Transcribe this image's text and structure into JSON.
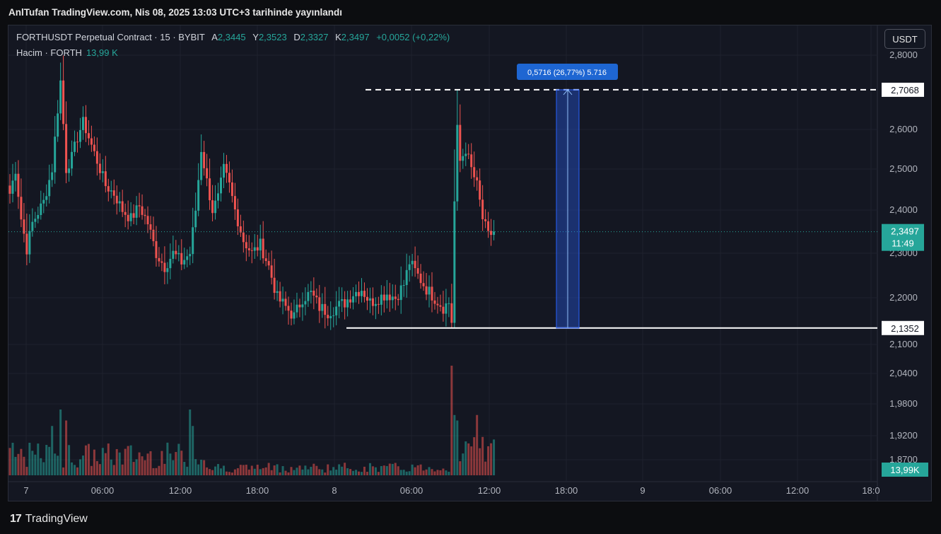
{
  "header": {
    "published_line": "AnlTufan TradingView.com, Nis 08, 2025 13:03 UTC+3 tarihinde yayınlandı"
  },
  "legend": {
    "symbol": "FORTHUSDT Perpetual Contract · 15 · BYBIT",
    "open_label": "A",
    "open": "2,3445",
    "high_label": "Y",
    "high": "2,3523",
    "low_label": "D",
    "low": "2,3327",
    "close_label": "K",
    "close": "2,3497",
    "change": "+0,0052 (+0,22%)"
  },
  "volume_legend": {
    "label": "Hacim · FORTH",
    "value": "13,99 K"
  },
  "currency_button": "USDT",
  "footer": {
    "brand": "TradingView",
    "mark": "17"
  },
  "colors": {
    "up": "#26a69a",
    "down": "#ef5350",
    "background": "#141722",
    "measure": "#2962ff"
  },
  "chart_data": {
    "type": "candlestick",
    "ylim": [
      1.87,
      2.8
    ],
    "price_ticks": [
      "2,8000",
      "2,6000",
      "2,5000",
      "2,4000",
      "2,3000",
      "2,2000",
      "2,1000",
      "2,0400",
      "1,9800",
      "1,9200",
      "1,8700"
    ],
    "x_ticks": [
      "7",
      "06:00",
      "12:00",
      "18:00",
      "8",
      "06:00",
      "12:00",
      "18:00",
      "9",
      "06:00",
      "12:00",
      "18:0"
    ],
    "current_price": {
      "value": 2.3497,
      "label": "2,3497",
      "countdown": "11:49"
    },
    "volume_badge": "13,99K",
    "levels": [
      {
        "value": 2.7068,
        "label": "2,7068",
        "style": "dashed"
      },
      {
        "value": 2.1352,
        "label": "2,1352",
        "style": "solid"
      }
    ],
    "measure": {
      "from": 2.1352,
      "to": 2.7068,
      "label": "0,5716 (26,77%) 5.716"
    },
    "anchors": [
      {
        "i": 0,
        "p": 2.44
      },
      {
        "i": 2,
        "p": 2.5
      },
      {
        "i": 4,
        "p": 2.38
      },
      {
        "i": 6,
        "p": 2.31
      },
      {
        "i": 8,
        "p": 2.37
      },
      {
        "i": 12,
        "p": 2.42
      },
      {
        "i": 15,
        "p": 2.5
      },
      {
        "i": 18,
        "p": 2.73
      },
      {
        "i": 20,
        "p": 2.5
      },
      {
        "i": 22,
        "p": 2.53
      },
      {
        "i": 24,
        "p": 2.58
      },
      {
        "i": 26,
        "p": 2.62
      },
      {
        "i": 29,
        "p": 2.56
      },
      {
        "i": 32,
        "p": 2.5
      },
      {
        "i": 34,
        "p": 2.46
      },
      {
        "i": 37,
        "p": 2.44
      },
      {
        "i": 40,
        "p": 2.4
      },
      {
        "i": 43,
        "p": 2.38
      },
      {
        "i": 46,
        "p": 2.41
      },
      {
        "i": 49,
        "p": 2.37
      },
      {
        "i": 52,
        "p": 2.3
      },
      {
        "i": 55,
        "p": 2.27
      },
      {
        "i": 58,
        "p": 2.3
      },
      {
        "i": 61,
        "p": 2.28
      },
      {
        "i": 64,
        "p": 2.3
      },
      {
        "i": 66,
        "p": 2.4
      },
      {
        "i": 68,
        "p": 2.55
      },
      {
        "i": 70,
        "p": 2.47
      },
      {
        "i": 72,
        "p": 2.4
      },
      {
        "i": 74,
        "p": 2.43
      },
      {
        "i": 76,
        "p": 2.5
      },
      {
        "i": 78,
        "p": 2.46
      },
      {
        "i": 80,
        "p": 2.4
      },
      {
        "i": 83,
        "p": 2.33
      },
      {
        "i": 86,
        "p": 2.3
      },
      {
        "i": 89,
        "p": 2.32
      },
      {
        "i": 92,
        "p": 2.27
      },
      {
        "i": 95,
        "p": 2.2
      },
      {
        "i": 98,
        "p": 2.18
      },
      {
        "i": 101,
        "p": 2.16
      },
      {
        "i": 104,
        "p": 2.2
      },
      {
        "i": 107,
        "p": 2.21
      },
      {
        "i": 110,
        "p": 2.18
      },
      {
        "i": 113,
        "p": 2.17
      },
      {
        "i": 116,
        "p": 2.18
      },
      {
        "i": 119,
        "p": 2.19
      },
      {
        "i": 122,
        "p": 2.21
      },
      {
        "i": 125,
        "p": 2.22
      },
      {
        "i": 128,
        "p": 2.19
      },
      {
        "i": 131,
        "p": 2.2
      },
      {
        "i": 134,
        "p": 2.21
      },
      {
        "i": 137,
        "p": 2.2
      },
      {
        "i": 140,
        "p": 2.23
      },
      {
        "i": 142,
        "p": 2.28
      },
      {
        "i": 144,
        "p": 2.26
      },
      {
        "i": 146,
        "p": 2.24
      },
      {
        "i": 148,
        "p": 2.22
      },
      {
        "i": 151,
        "p": 2.2
      },
      {
        "i": 154,
        "p": 2.18
      },
      {
        "i": 156,
        "p": 2.19
      },
      {
        "i": 157,
        "p": 2.15
      },
      {
        "i": 158,
        "p": 2.42
      },
      {
        "i": 159,
        "p": 2.6
      },
      {
        "i": 160,
        "p": 2.52
      },
      {
        "i": 162,
        "p": 2.55
      },
      {
        "i": 164,
        "p": 2.5
      },
      {
        "i": 166,
        "p": 2.46
      },
      {
        "i": 168,
        "p": 2.38
      },
      {
        "i": 170,
        "p": 2.34
      },
      {
        "i": 172,
        "p": 2.35
      }
    ],
    "volume_spikes": [
      {
        "i": 15,
        "v": 0.45
      },
      {
        "i": 18,
        "v": 0.6
      },
      {
        "i": 20,
        "v": 0.5
      },
      {
        "i": 64,
        "v": 0.6
      },
      {
        "i": 65,
        "v": 0.45
      },
      {
        "i": 157,
        "v": 1.0
      },
      {
        "i": 158,
        "v": 0.55
      },
      {
        "i": 159,
        "v": 0.5
      },
      {
        "i": 166,
        "v": 0.55
      },
      {
        "i": 168,
        "v": 0.35
      }
    ]
  }
}
